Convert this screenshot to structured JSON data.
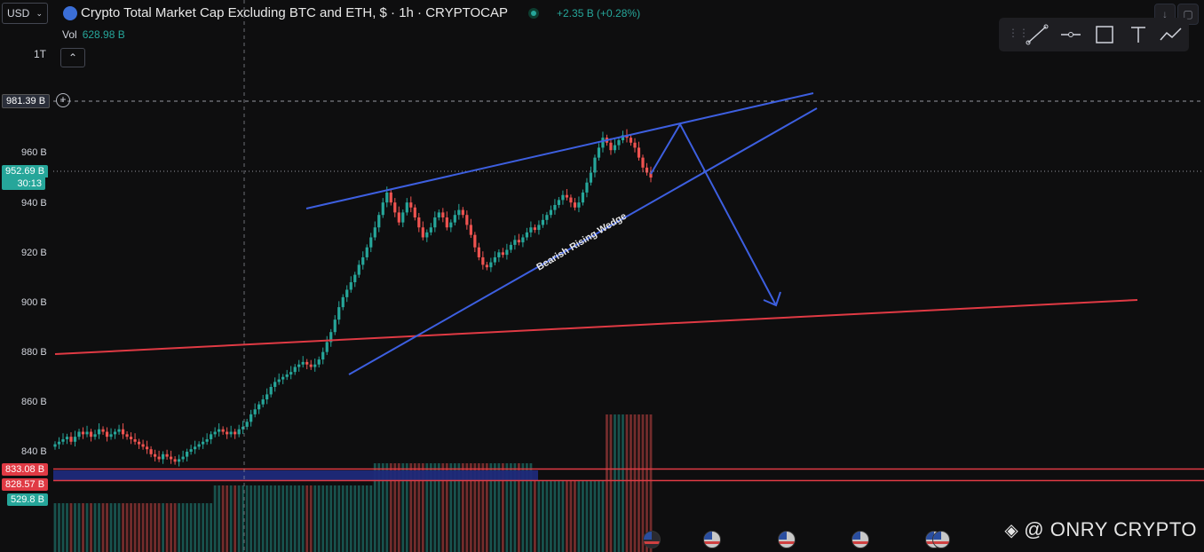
{
  "header": {
    "currency": "USD",
    "title": "Crypto Total Market Cap Excluding BTC and ETH, $ · 1h · CRYPTOCAP",
    "change": "+2.35 B (+0.28%)",
    "vol_label": "Vol",
    "vol_value": "628.98 B",
    "scale_label": "1T",
    "collapse_icon": "⌃"
  },
  "price_tags": {
    "crosshair": "981.39 B",
    "last_price": "952.69 B",
    "countdown": "30:13",
    "red1": "833.08 B",
    "red2": "828.57 B",
    "volume": "529.8 B"
  },
  "annotation": {
    "wedge_label": "Bearish Rising Wedge"
  },
  "watermark": "@ ONRY CRYPTO",
  "colors": {
    "up": "#26a69a",
    "down": "#ef5350",
    "drawing_blue": "#3d5fe0",
    "support_red": "#e03a44",
    "zone_blue": "#1f2a7a"
  },
  "chart_data": {
    "type": "candlestick",
    "title": "Crypto Total Market Cap Excluding BTC and ETH, $ · 1h · CRYPTOCAP",
    "ylabel": "",
    "ylim": [
      820,
      1000
    ],
    "y_ticks": [
      840,
      860,
      880,
      900,
      920,
      940,
      960
    ],
    "y_tick_labels": [
      "840 B",
      "860 B",
      "880 B",
      "900 B",
      "920 B",
      "940 B",
      "960 B"
    ],
    "closes": [
      843,
      844,
      845,
      846,
      844,
      846,
      848,
      847,
      848,
      846,
      847,
      849,
      848,
      846,
      847,
      848,
      849,
      847,
      846,
      845,
      844,
      843,
      842,
      841,
      839,
      838,
      837,
      839,
      838,
      837,
      836,
      837,
      838,
      840,
      841,
      842,
      843,
      844,
      845,
      847,
      848,
      849,
      848,
      847,
      848,
      847,
      849,
      850,
      852,
      855,
      857,
      859,
      861,
      863,
      866,
      868,
      869,
      870,
      871,
      872,
      874,
      875,
      876,
      875,
      874,
      875,
      877,
      880,
      884,
      888,
      893,
      898,
      902,
      905,
      908,
      911,
      915,
      918,
      922,
      926,
      930,
      935,
      940,
      944,
      940,
      936,
      932,
      936,
      940,
      938,
      934,
      930,
      926,
      928,
      930,
      934,
      936,
      934,
      930,
      932,
      935,
      937,
      935,
      931,
      927,
      922,
      918,
      915,
      914,
      916,
      918,
      920,
      919,
      921,
      923,
      925,
      924,
      926,
      928,
      930,
      929,
      931,
      933,
      935,
      937,
      939,
      941,
      943,
      942,
      940,
      938,
      940,
      944,
      948,
      952,
      958,
      962,
      966,
      964,
      961,
      963,
      965,
      967,
      966,
      964,
      962,
      958,
      954,
      952,
      950
    ],
    "volume_levels": [
      520,
      520,
      520,
      520,
      525,
      525,
      525,
      530,
      530,
      530,
      540,
      545,
      545,
      550,
      550,
      552,
      555,
      555,
      555,
      560,
      560,
      560,
      560,
      562,
      565,
      565,
      565,
      565,
      566,
      566,
      566,
      566,
      566,
      566,
      566,
      566,
      566,
      566,
      566,
      566,
      566,
      566,
      566,
      566,
      566,
      566,
      566,
      566,
      566,
      566,
      566,
      566,
      566,
      566,
      566,
      566,
      566,
      566,
      566,
      566,
      566,
      566,
      566,
      566,
      566,
      566,
      566,
      566,
      566,
      566,
      566,
      566,
      566,
      566,
      566,
      566,
      566,
      566,
      566,
      566,
      566,
      566,
      566,
      566,
      566,
      566,
      566,
      566,
      566,
      566,
      566,
      566,
      566,
      566,
      566,
      566,
      566,
      566,
      566,
      566,
      566,
      566,
      566,
      566,
      566,
      566,
      566,
      566,
      566,
      566,
      566,
      566,
      566,
      566,
      566,
      566,
      566,
      566,
      566,
      566,
      566,
      566,
      566,
      566,
      566,
      566,
      566,
      566,
      566,
      566,
      566,
      566,
      566,
      566,
      566,
      566,
      566,
      566,
      566,
      566,
      566,
      566,
      566,
      566,
      566,
      566,
      566,
      566,
      566,
      566
    ],
    "levels": {
      "crosshair_price": 981.39,
      "last_price": 952.69,
      "red_zone_top": 833.08,
      "red_zone_bottom": 828.57
    },
    "drawings": [
      {
        "name": "wedge-upper-line",
        "from": [
          0.18,
          940
        ],
        "to": [
          1.0,
          985
        ]
      },
      {
        "name": "wedge-lower-line",
        "from": [
          0.34,
          871
        ],
        "to": [
          1.0,
          974
        ]
      },
      {
        "name": "support-line",
        "from": [
          0.0,
          880
        ],
        "to": [
          1.0,
          901
        ]
      }
    ]
  }
}
